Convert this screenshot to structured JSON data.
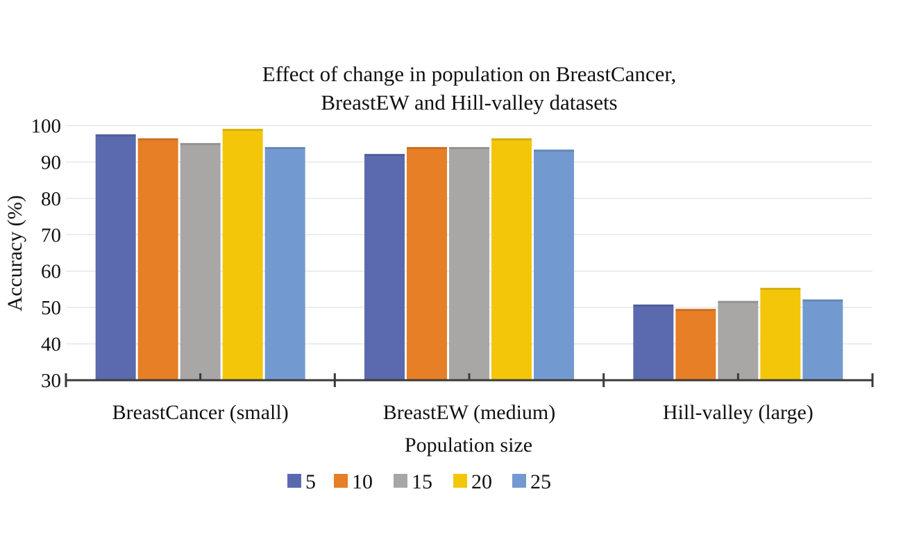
{
  "chart_data": {
    "type": "bar",
    "title_lines": [
      "Effect of change in population on BreastCancer,",
      "BreastEW and Hill-valley datasets"
    ],
    "xlabel": "Population size",
    "ylabel": "Accuracy (%)",
    "ylim": [
      30,
      100
    ],
    "yticks": [
      30,
      40,
      50,
      60,
      70,
      80,
      90,
      100
    ],
    "grid": true,
    "legend_position": "bottom-center",
    "categories": [
      "BreastCancer (small)",
      "BreastEW (medium)",
      "Hill-valley (large)"
    ],
    "series": [
      {
        "name": "5",
        "color": "#5b6aae",
        "values": [
          97.6,
          92.2,
          50.8
        ]
      },
      {
        "name": "10",
        "color": "#e67f26",
        "values": [
          96.5,
          94.1,
          49.6
        ]
      },
      {
        "name": "15",
        "color": "#a9a6a6",
        "values": [
          95.2,
          94.1,
          51.8
        ]
      },
      {
        "name": "20",
        "color": "#f3c60a",
        "values": [
          99.1,
          96.5,
          55.4
        ]
      },
      {
        "name": "25",
        "color": "#739ad0",
        "values": [
          94.1,
          93.4,
          52.2
        ]
      }
    ]
  }
}
